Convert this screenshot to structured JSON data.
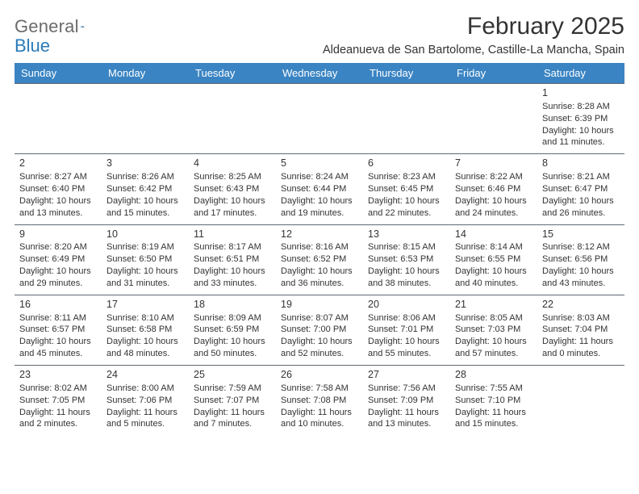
{
  "brand": {
    "name_part1": "General",
    "name_part2": "Blue"
  },
  "title": "February 2025",
  "location": "Aldeanueva de San Bartolome, Castille-La Mancha, Spain",
  "colors": {
    "header_bg": "#3a84c3",
    "header_text": "#ffffff",
    "divider": "#5f6a73",
    "page_bg": "#ffffff",
    "text": "#333333",
    "logo_gray": "#6b6b6b",
    "logo_blue": "#2a7ab8"
  },
  "typography": {
    "title_fontsize": 30,
    "location_fontsize": 14.5,
    "dayheader_fontsize": 13,
    "cell_fontsize": 11,
    "daynum_fontsize": 12.5
  },
  "day_headers": [
    "Sunday",
    "Monday",
    "Tuesday",
    "Wednesday",
    "Thursday",
    "Friday",
    "Saturday"
  ],
  "weeks": [
    [
      null,
      null,
      null,
      null,
      null,
      null,
      {
        "n": "1",
        "sr": "8:28 AM",
        "ss": "6:39 PM",
        "dl": "10 hours and 11 minutes."
      }
    ],
    [
      {
        "n": "2",
        "sr": "8:27 AM",
        "ss": "6:40 PM",
        "dl": "10 hours and 13 minutes."
      },
      {
        "n": "3",
        "sr": "8:26 AM",
        "ss": "6:42 PM",
        "dl": "10 hours and 15 minutes."
      },
      {
        "n": "4",
        "sr": "8:25 AM",
        "ss": "6:43 PM",
        "dl": "10 hours and 17 minutes."
      },
      {
        "n": "5",
        "sr": "8:24 AM",
        "ss": "6:44 PM",
        "dl": "10 hours and 19 minutes."
      },
      {
        "n": "6",
        "sr": "8:23 AM",
        "ss": "6:45 PM",
        "dl": "10 hours and 22 minutes."
      },
      {
        "n": "7",
        "sr": "8:22 AM",
        "ss": "6:46 PM",
        "dl": "10 hours and 24 minutes."
      },
      {
        "n": "8",
        "sr": "8:21 AM",
        "ss": "6:47 PM",
        "dl": "10 hours and 26 minutes."
      }
    ],
    [
      {
        "n": "9",
        "sr": "8:20 AM",
        "ss": "6:49 PM",
        "dl": "10 hours and 29 minutes."
      },
      {
        "n": "10",
        "sr": "8:19 AM",
        "ss": "6:50 PM",
        "dl": "10 hours and 31 minutes."
      },
      {
        "n": "11",
        "sr": "8:17 AM",
        "ss": "6:51 PM",
        "dl": "10 hours and 33 minutes."
      },
      {
        "n": "12",
        "sr": "8:16 AM",
        "ss": "6:52 PM",
        "dl": "10 hours and 36 minutes."
      },
      {
        "n": "13",
        "sr": "8:15 AM",
        "ss": "6:53 PM",
        "dl": "10 hours and 38 minutes."
      },
      {
        "n": "14",
        "sr": "8:14 AM",
        "ss": "6:55 PM",
        "dl": "10 hours and 40 minutes."
      },
      {
        "n": "15",
        "sr": "8:12 AM",
        "ss": "6:56 PM",
        "dl": "10 hours and 43 minutes."
      }
    ],
    [
      {
        "n": "16",
        "sr": "8:11 AM",
        "ss": "6:57 PM",
        "dl": "10 hours and 45 minutes."
      },
      {
        "n": "17",
        "sr": "8:10 AM",
        "ss": "6:58 PM",
        "dl": "10 hours and 48 minutes."
      },
      {
        "n": "18",
        "sr": "8:09 AM",
        "ss": "6:59 PM",
        "dl": "10 hours and 50 minutes."
      },
      {
        "n": "19",
        "sr": "8:07 AM",
        "ss": "7:00 PM",
        "dl": "10 hours and 52 minutes."
      },
      {
        "n": "20",
        "sr": "8:06 AM",
        "ss": "7:01 PM",
        "dl": "10 hours and 55 minutes."
      },
      {
        "n": "21",
        "sr": "8:05 AM",
        "ss": "7:03 PM",
        "dl": "10 hours and 57 minutes."
      },
      {
        "n": "22",
        "sr": "8:03 AM",
        "ss": "7:04 PM",
        "dl": "11 hours and 0 minutes."
      }
    ],
    [
      {
        "n": "23",
        "sr": "8:02 AM",
        "ss": "7:05 PM",
        "dl": "11 hours and 2 minutes."
      },
      {
        "n": "24",
        "sr": "8:00 AM",
        "ss": "7:06 PM",
        "dl": "11 hours and 5 minutes."
      },
      {
        "n": "25",
        "sr": "7:59 AM",
        "ss": "7:07 PM",
        "dl": "11 hours and 7 minutes."
      },
      {
        "n": "26",
        "sr": "7:58 AM",
        "ss": "7:08 PM",
        "dl": "11 hours and 10 minutes."
      },
      {
        "n": "27",
        "sr": "7:56 AM",
        "ss": "7:09 PM",
        "dl": "11 hours and 13 minutes."
      },
      {
        "n": "28",
        "sr": "7:55 AM",
        "ss": "7:10 PM",
        "dl": "11 hours and 15 minutes."
      },
      null
    ]
  ],
  "labels": {
    "sunrise": "Sunrise:",
    "sunset": "Sunset:",
    "daylight": "Daylight:"
  }
}
